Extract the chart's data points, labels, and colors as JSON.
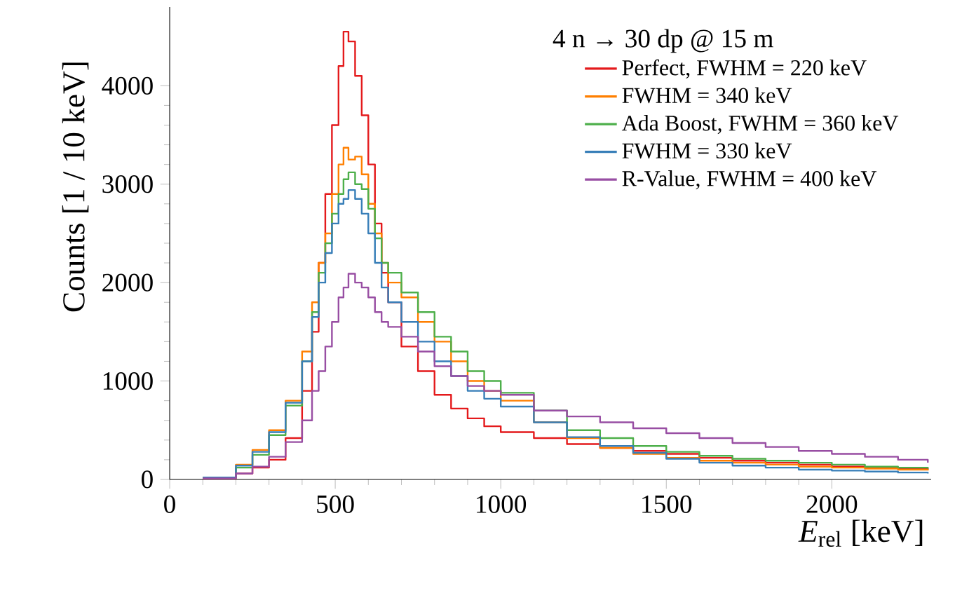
{
  "chart_data": {
    "type": "step",
    "legend_title": "4 n → 30 dp @ 15 m",
    "xlabel": "*E*$_{rel}$ [keV]",
    "ylabel": "Counts [1 / 10 keV]",
    "x": [
      100,
      200,
      250,
      300,
      350,
      400,
      430,
      450,
      470,
      490,
      510,
      525,
      540,
      560,
      580,
      600,
      620,
      640,
      660,
      700,
      750,
      800,
      850,
      900,
      950,
      1000,
      1100,
      1200,
      1300,
      1400,
      1500,
      1600,
      1700,
      1800,
      1900,
      2000,
      2100,
      2200,
      2290
    ],
    "series": [
      {
        "name": "Perfect, FWHM = 220 keV",
        "color": "#e41a1c",
        "values": [
          10,
          60,
          120,
          200,
          420,
          900,
          1500,
          2200,
          2900,
          3600,
          4200,
          4550,
          4450,
          4100,
          3700,
          3200,
          2600,
          2100,
          1800,
          1350,
          1100,
          860,
          720,
          620,
          540,
          480,
          420,
          360,
          320,
          290,
          260,
          220,
          190,
          170,
          150,
          130,
          120,
          110,
          100
        ]
      },
      {
        "name": "FWHM = 340 keV",
        "color": "#ff7f00",
        "values": [
          20,
          150,
          300,
          500,
          800,
          1300,
          1800,
          2200,
          2500,
          2900,
          3200,
          3370,
          3250,
          3280,
          3100,
          2800,
          2500,
          2200,
          2000,
          1850,
          1600,
          1400,
          1200,
          1000,
          900,
          800,
          580,
          420,
          320,
          260,
          220,
          190,
          170,
          150,
          130,
          120,
          110,
          100,
          90
        ]
      },
      {
        "name": "Ada Boost, FWHM = 360 keV",
        "color": "#4daf4a",
        "values": [
          20,
          120,
          250,
          450,
          750,
          1200,
          1700,
          2100,
          2400,
          2700,
          2900,
          3050,
          3120,
          3000,
          2950,
          2750,
          2450,
          2200,
          2100,
          1900,
          1700,
          1450,
          1300,
          1100,
          1000,
          880,
          700,
          500,
          420,
          340,
          280,
          240,
          210,
          190,
          170,
          150,
          130,
          120,
          110
        ]
      },
      {
        "name": "FWHM = 330 keV",
        "color": "#377eb8",
        "values": [
          20,
          140,
          280,
          480,
          780,
          1200,
          1650,
          2000,
          2300,
          2600,
          2800,
          2850,
          2940,
          2850,
          2700,
          2500,
          2200,
          1950,
          1800,
          1600,
          1400,
          1200,
          1050,
          900,
          820,
          740,
          580,
          430,
          340,
          270,
          210,
          170,
          140,
          120,
          100,
          90,
          80,
          70,
          60
        ]
      },
      {
        "name": "R-Value, FWHM = 400 keV",
        "color": "#984ea3",
        "values": [
          10,
          60,
          130,
          230,
          380,
          600,
          900,
          1100,
          1350,
          1600,
          1850,
          1950,
          2090,
          2000,
          1950,
          1850,
          1700,
          1600,
          1550,
          1450,
          1300,
          1150,
          1050,
          950,
          900,
          860,
          700,
          640,
          580,
          520,
          470,
          420,
          370,
          330,
          290,
          260,
          230,
          200,
          170
        ]
      }
    ],
    "xlim": [
      0,
      2300
    ],
    "ylim": [
      0,
      4800
    ],
    "xticks": [
      0,
      500,
      1000,
      1500,
      2000
    ],
    "yticks": [
      0,
      1000,
      2000,
      3000,
      4000
    ],
    "grid": false,
    "legend": "top right"
  }
}
